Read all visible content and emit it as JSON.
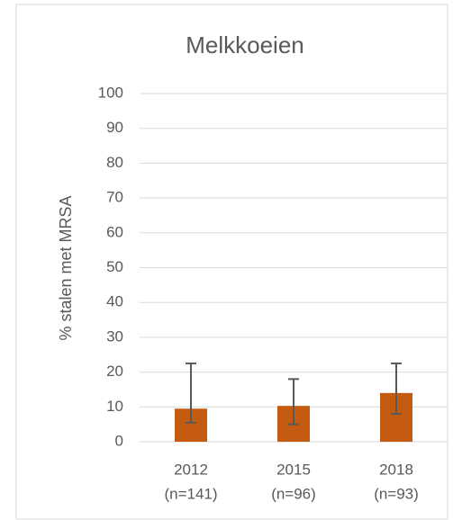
{
  "chart_data": {
    "type": "bar",
    "title": "Melkkoeien",
    "y_label": "% stalen met MRSA",
    "categories": [
      [
        "2012",
        "(n=141)"
      ],
      [
        "2015",
        "(n=96)"
      ],
      [
        "2018",
        "(n=93)"
      ]
    ],
    "values": [
      9.5,
      10.3,
      14
    ],
    "lower": [
      5.5,
      5,
      8
    ],
    "upper": [
      22.5,
      18,
      22.5
    ],
    "color": "#c55a11",
    "error_color": "#595959",
    "ylim": [
      0,
      100
    ],
    "yticks": [
      0,
      10,
      20,
      30,
      40,
      50,
      60,
      70,
      80,
      90,
      100
    ],
    "grid": true
  }
}
